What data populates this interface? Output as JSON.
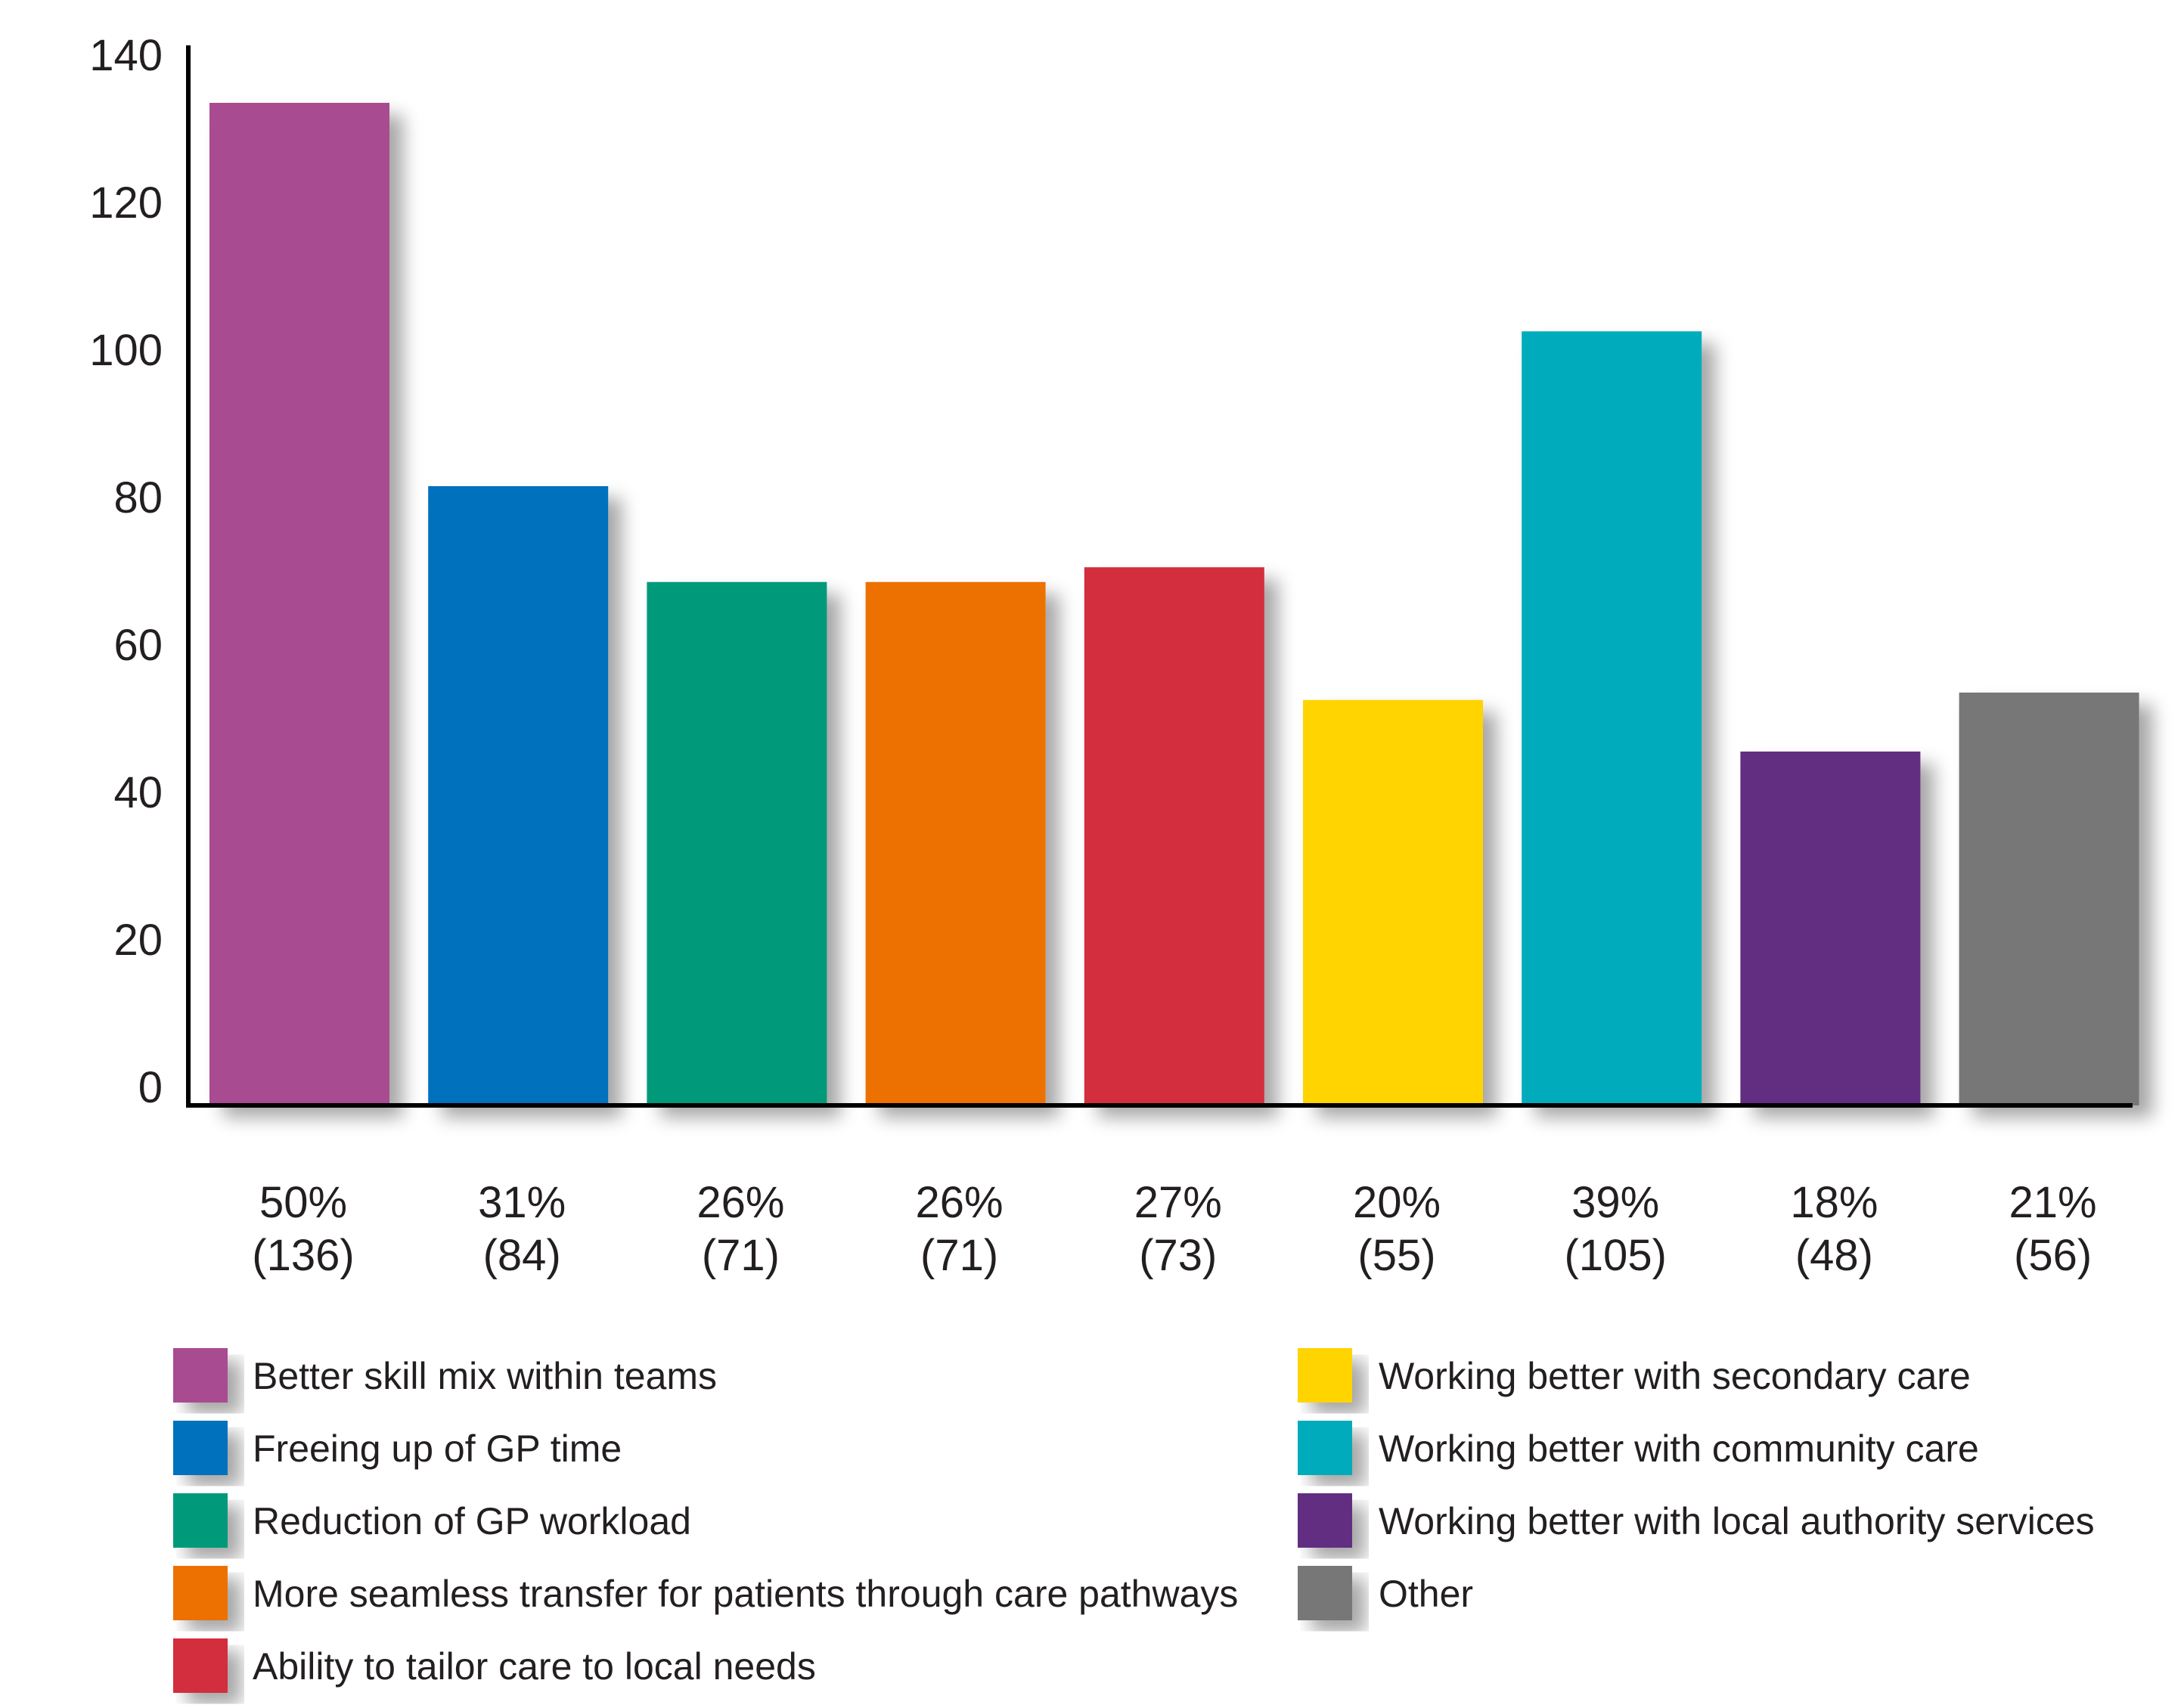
{
  "chart_data": {
    "type": "bar",
    "title": "",
    "xlabel": "",
    "ylabel": "",
    "ylim": [
      0,
      140
    ],
    "yticks": [
      "0",
      "20",
      "40",
      "60",
      "80",
      "100",
      "120",
      "140"
    ],
    "grid": false,
    "legend_position": "bottom",
    "categories": [
      "Better skill mix within teams",
      "Freeing up of GP time",
      "Reduction of GP workload",
      "More seamless transfer for patients through care pathways",
      "Ability to tailor care to local needs",
      "Working better with secondary care",
      "Working better with community care",
      "Working better with local authority services",
      "Other"
    ],
    "values": [
      136,
      84,
      71,
      71,
      73,
      55,
      105,
      48,
      56
    ],
    "percent_labels": [
      "50%",
      "31%",
      "26%",
      "26%",
      "27%",
      "20%",
      "39%",
      "18%",
      "21%"
    ],
    "count_labels": [
      "(136)",
      "(84)",
      "(71)",
      "(71)",
      "(73)",
      "(55)",
      "(105)",
      "(48)",
      "(56)"
    ],
    "colors": [
      "#a84b90",
      "#0071bc",
      "#009a7a",
      "#ec7105",
      "#d22f3c",
      "#ffd400",
      "#00acbb",
      "#622d82",
      "#777777"
    ]
  },
  "legend": {
    "left": [
      {
        "label": "Better skill mix within teams",
        "color": "#a84b90"
      },
      {
        "label": "Freeing up of GP time",
        "color": "#0071bc"
      },
      {
        "label": "Reduction of GP workload",
        "color": "#009a7a"
      },
      {
        "label": "More seamless transfer for patients through care pathways",
        "color": "#ec7105"
      },
      {
        "label": "Ability to tailor care to local needs",
        "color": "#d22f3c"
      }
    ],
    "right": [
      {
        "label": "Working better with secondary care",
        "color": "#ffd400"
      },
      {
        "label": "Working better with community care",
        "color": "#00acbb"
      },
      {
        "label": "Working better with local authority services",
        "color": "#622d82"
      },
      {
        "label": "Other",
        "color": "#777777"
      }
    ]
  }
}
